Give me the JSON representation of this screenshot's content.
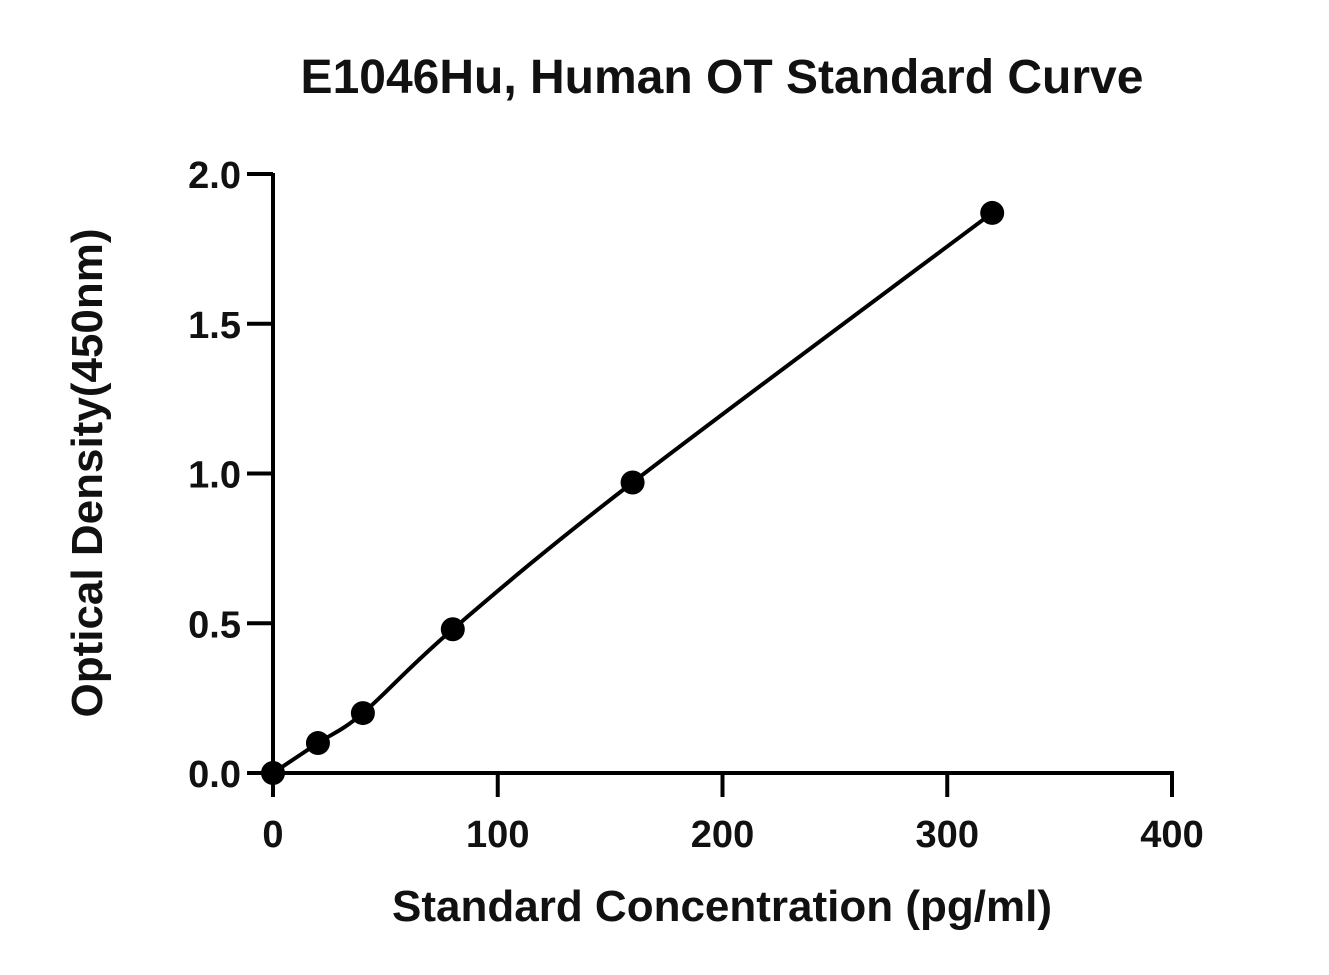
{
  "chart_data": {
    "type": "scatter",
    "title": "E1046Hu, Human OT Standard Curve",
    "xlabel": "Standard Concentration (pg/ml)",
    "ylabel": "Optical Density(450nm)",
    "xlim": [
      0,
      400
    ],
    "ylim": [
      0,
      2.0
    ],
    "xticks": [
      0,
      100,
      200,
      300,
      400
    ],
    "xtick_labels": [
      "0",
      "100",
      "200",
      "300",
      "400"
    ],
    "yticks": [
      0,
      0.5,
      1.0,
      1.5,
      2.0
    ],
    "ytick_labels": [
      "0.0",
      "0.5",
      "1.0",
      "1.5",
      "2.0"
    ],
    "grid": false,
    "series": [
      {
        "x": [
          0,
          20,
          40,
          80,
          160,
          320
        ],
        "y": [
          0.0,
          0.1,
          0.2,
          0.48,
          0.97,
          1.87
        ],
        "color": "#000000",
        "fit_line": true
      }
    ]
  }
}
